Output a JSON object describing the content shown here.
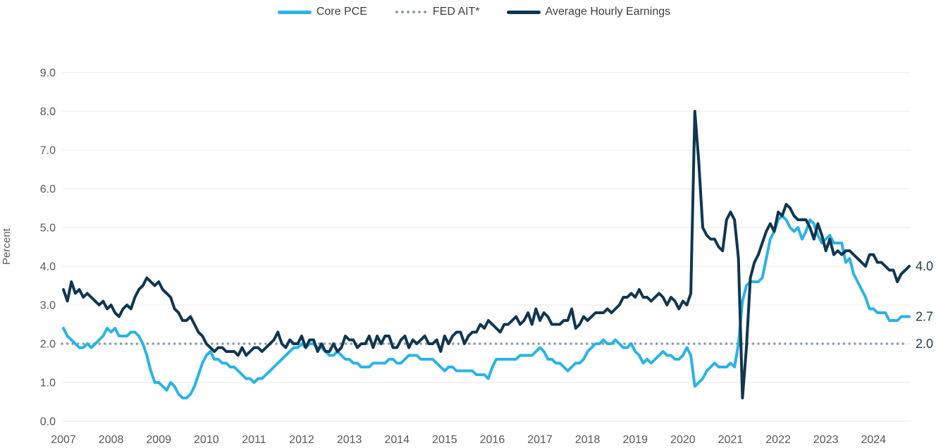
{
  "legend": {
    "items": [
      {
        "label": "Core PCE",
        "color": "#29B3E8",
        "style": "solid"
      },
      {
        "label": "FED AIT*",
        "color": "#8A9CA9",
        "style": "dotted"
      },
      {
        "label": "Average Hourly Earnings",
        "color": "#103650",
        "style": "solid"
      }
    ]
  },
  "colors": {
    "core_pce": "#29B3E8",
    "fed_ait": "#8A9CA9",
    "avg_hourly_earnings": "#103650",
    "gridline": "#E8E8E8",
    "tick_text": "#595959",
    "end_label_text": "#1F3A52",
    "connector": "#A6ADB3",
    "background": "#FFFFFF"
  },
  "chart_data": {
    "type": "line",
    "title": "",
    "xlabel": "",
    "ylabel": "Percent",
    "ylim": [
      0,
      9
    ],
    "grid": "horizontal",
    "legend_position": "top-center",
    "frequency": "monthly",
    "x_start": "2007-01",
    "x_end": "2024-10",
    "yticks": [
      "0.0",
      "1.0",
      "2.0",
      "3.0",
      "4.0",
      "5.0",
      "6.0",
      "7.0",
      "8.0",
      "9.0"
    ],
    "xticks": [
      "2007",
      "2008",
      "2009",
      "2010",
      "2011",
      "2012",
      "2013",
      "2014",
      "2015",
      "2016",
      "2017",
      "2018",
      "2019",
      "2020",
      "2021",
      "2022",
      "2023",
      "2024"
    ],
    "series": [
      {
        "name": "Core PCE",
        "color": "#29B3E8",
        "style": "solid",
        "end_label": "2.7",
        "values": [
          2.4,
          2.2,
          2.1,
          2.0,
          1.9,
          1.9,
          2.0,
          1.9,
          2.0,
          2.1,
          2.2,
          2.4,
          2.3,
          2.4,
          2.2,
          2.2,
          2.2,
          2.3,
          2.3,
          2.2,
          2.0,
          1.7,
          1.3,
          1.0,
          1.0,
          0.9,
          0.8,
          1.0,
          0.9,
          0.7,
          0.6,
          0.6,
          0.7,
          0.9,
          1.2,
          1.5,
          1.7,
          1.8,
          1.6,
          1.6,
          1.5,
          1.5,
          1.4,
          1.4,
          1.3,
          1.2,
          1.1,
          1.1,
          1.0,
          1.1,
          1.1,
          1.2,
          1.3,
          1.4,
          1.5,
          1.6,
          1.7,
          1.8,
          1.9,
          1.9,
          2.0,
          1.9,
          2.0,
          2.0,
          1.9,
          1.9,
          1.8,
          1.7,
          1.7,
          1.8,
          1.7,
          1.6,
          1.6,
          1.5,
          1.5,
          1.4,
          1.4,
          1.4,
          1.5,
          1.5,
          1.5,
          1.5,
          1.6,
          1.6,
          1.5,
          1.5,
          1.6,
          1.7,
          1.7,
          1.7,
          1.6,
          1.6,
          1.6,
          1.6,
          1.5,
          1.4,
          1.3,
          1.4,
          1.4,
          1.3,
          1.3,
          1.3,
          1.3,
          1.3,
          1.2,
          1.2,
          1.2,
          1.1,
          1.4,
          1.6,
          1.6,
          1.6,
          1.6,
          1.6,
          1.6,
          1.7,
          1.7,
          1.7,
          1.7,
          1.8,
          1.9,
          1.8,
          1.6,
          1.6,
          1.5,
          1.5,
          1.4,
          1.3,
          1.4,
          1.5,
          1.5,
          1.6,
          1.8,
          1.9,
          2.0,
          2.0,
          2.1,
          2.0,
          2.0,
          2.1,
          2.0,
          1.9,
          1.9,
          2.0,
          1.8,
          1.7,
          1.5,
          1.6,
          1.5,
          1.6,
          1.7,
          1.8,
          1.7,
          1.7,
          1.6,
          1.6,
          1.7,
          1.9,
          1.7,
          0.9,
          1.0,
          1.1,
          1.3,
          1.4,
          1.5,
          1.4,
          1.4,
          1.4,
          1.5,
          1.4,
          2.0,
          3.1,
          3.5,
          3.6,
          3.6,
          3.6,
          3.7,
          4.2,
          4.7,
          4.9,
          5.2,
          5.3,
          5.2,
          5.0,
          4.9,
          5.0,
          4.7,
          4.9,
          5.2,
          5.1,
          4.8,
          4.6,
          4.7,
          4.8,
          4.6,
          4.6,
          4.6,
          4.1,
          4.2,
          3.8,
          3.6,
          3.4,
          3.2,
          2.9,
          2.9,
          2.8,
          2.8,
          2.8,
          2.6,
          2.6,
          2.6,
          2.7,
          2.7,
          2.7
        ]
      },
      {
        "name": "FED AIT*",
        "color": "#8A9CA9",
        "style": "dotted",
        "end_label": "2.0",
        "value": 2.0
      },
      {
        "name": "Average Hourly Earnings",
        "color": "#103650",
        "style": "solid",
        "end_label": "4.0",
        "values": [
          3.4,
          3.1,
          3.6,
          3.3,
          3.4,
          3.2,
          3.3,
          3.2,
          3.1,
          3.0,
          3.1,
          2.9,
          3.0,
          2.8,
          2.7,
          2.9,
          3.0,
          2.9,
          3.2,
          3.4,
          3.5,
          3.7,
          3.6,
          3.5,
          3.6,
          3.4,
          3.3,
          3.2,
          2.9,
          2.8,
          2.6,
          2.6,
          2.7,
          2.5,
          2.3,
          2.2,
          2.0,
          1.9,
          1.8,
          1.9,
          1.9,
          1.8,
          1.8,
          1.8,
          1.7,
          1.9,
          1.7,
          1.8,
          1.9,
          1.9,
          1.8,
          1.9,
          2.0,
          2.1,
          2.3,
          2.0,
          1.9,
          2.1,
          2.0,
          2.0,
          2.2,
          1.9,
          2.1,
          2.1,
          1.8,
          2.0,
          1.8,
          1.8,
          2.0,
          1.8,
          1.9,
          2.2,
          2.1,
          2.1,
          1.9,
          2.0,
          2.0,
          2.2,
          1.9,
          2.2,
          2.0,
          2.2,
          2.2,
          1.9,
          1.9,
          2.1,
          2.2,
          1.9,
          2.1,
          2.0,
          2.1,
          2.2,
          2.0,
          2.0,
          2.1,
          1.8,
          2.2,
          2.0,
          2.2,
          2.3,
          2.3,
          2.0,
          2.2,
          2.3,
          2.3,
          2.5,
          2.4,
          2.6,
          2.5,
          2.4,
          2.3,
          2.5,
          2.5,
          2.6,
          2.7,
          2.5,
          2.6,
          2.8,
          2.5,
          2.9,
          2.6,
          2.8,
          2.7,
          2.5,
          2.5,
          2.5,
          2.6,
          2.6,
          2.9,
          2.4,
          2.5,
          2.7,
          2.6,
          2.7,
          2.8,
          2.8,
          2.8,
          2.9,
          2.8,
          2.9,
          3.0,
          3.2,
          3.2,
          3.3,
          3.2,
          3.4,
          3.2,
          3.2,
          3.1,
          3.2,
          3.3,
          3.2,
          3.0,
          3.2,
          3.1,
          2.9,
          3.1,
          3.0,
          3.3,
          8.0,
          6.7,
          5.0,
          4.8,
          4.7,
          4.7,
          4.5,
          4.4,
          5.2,
          5.4,
          5.2,
          4.2,
          0.6,
          1.9,
          3.7,
          4.1,
          4.3,
          4.6,
          4.9,
          5.1,
          4.9,
          5.4,
          5.3,
          5.6,
          5.5,
          5.3,
          5.2,
          5.2,
          5.2,
          5.0,
          4.7,
          5.1,
          4.8,
          4.4,
          4.7,
          4.3,
          4.4,
          4.3,
          4.4,
          4.4,
          4.3,
          4.2,
          4.1,
          4.0,
          4.3,
          4.3,
          4.1,
          4.1,
          4.0,
          3.9,
          3.9,
          3.6,
          3.8,
          3.9,
          4.0
        ]
      }
    ]
  }
}
